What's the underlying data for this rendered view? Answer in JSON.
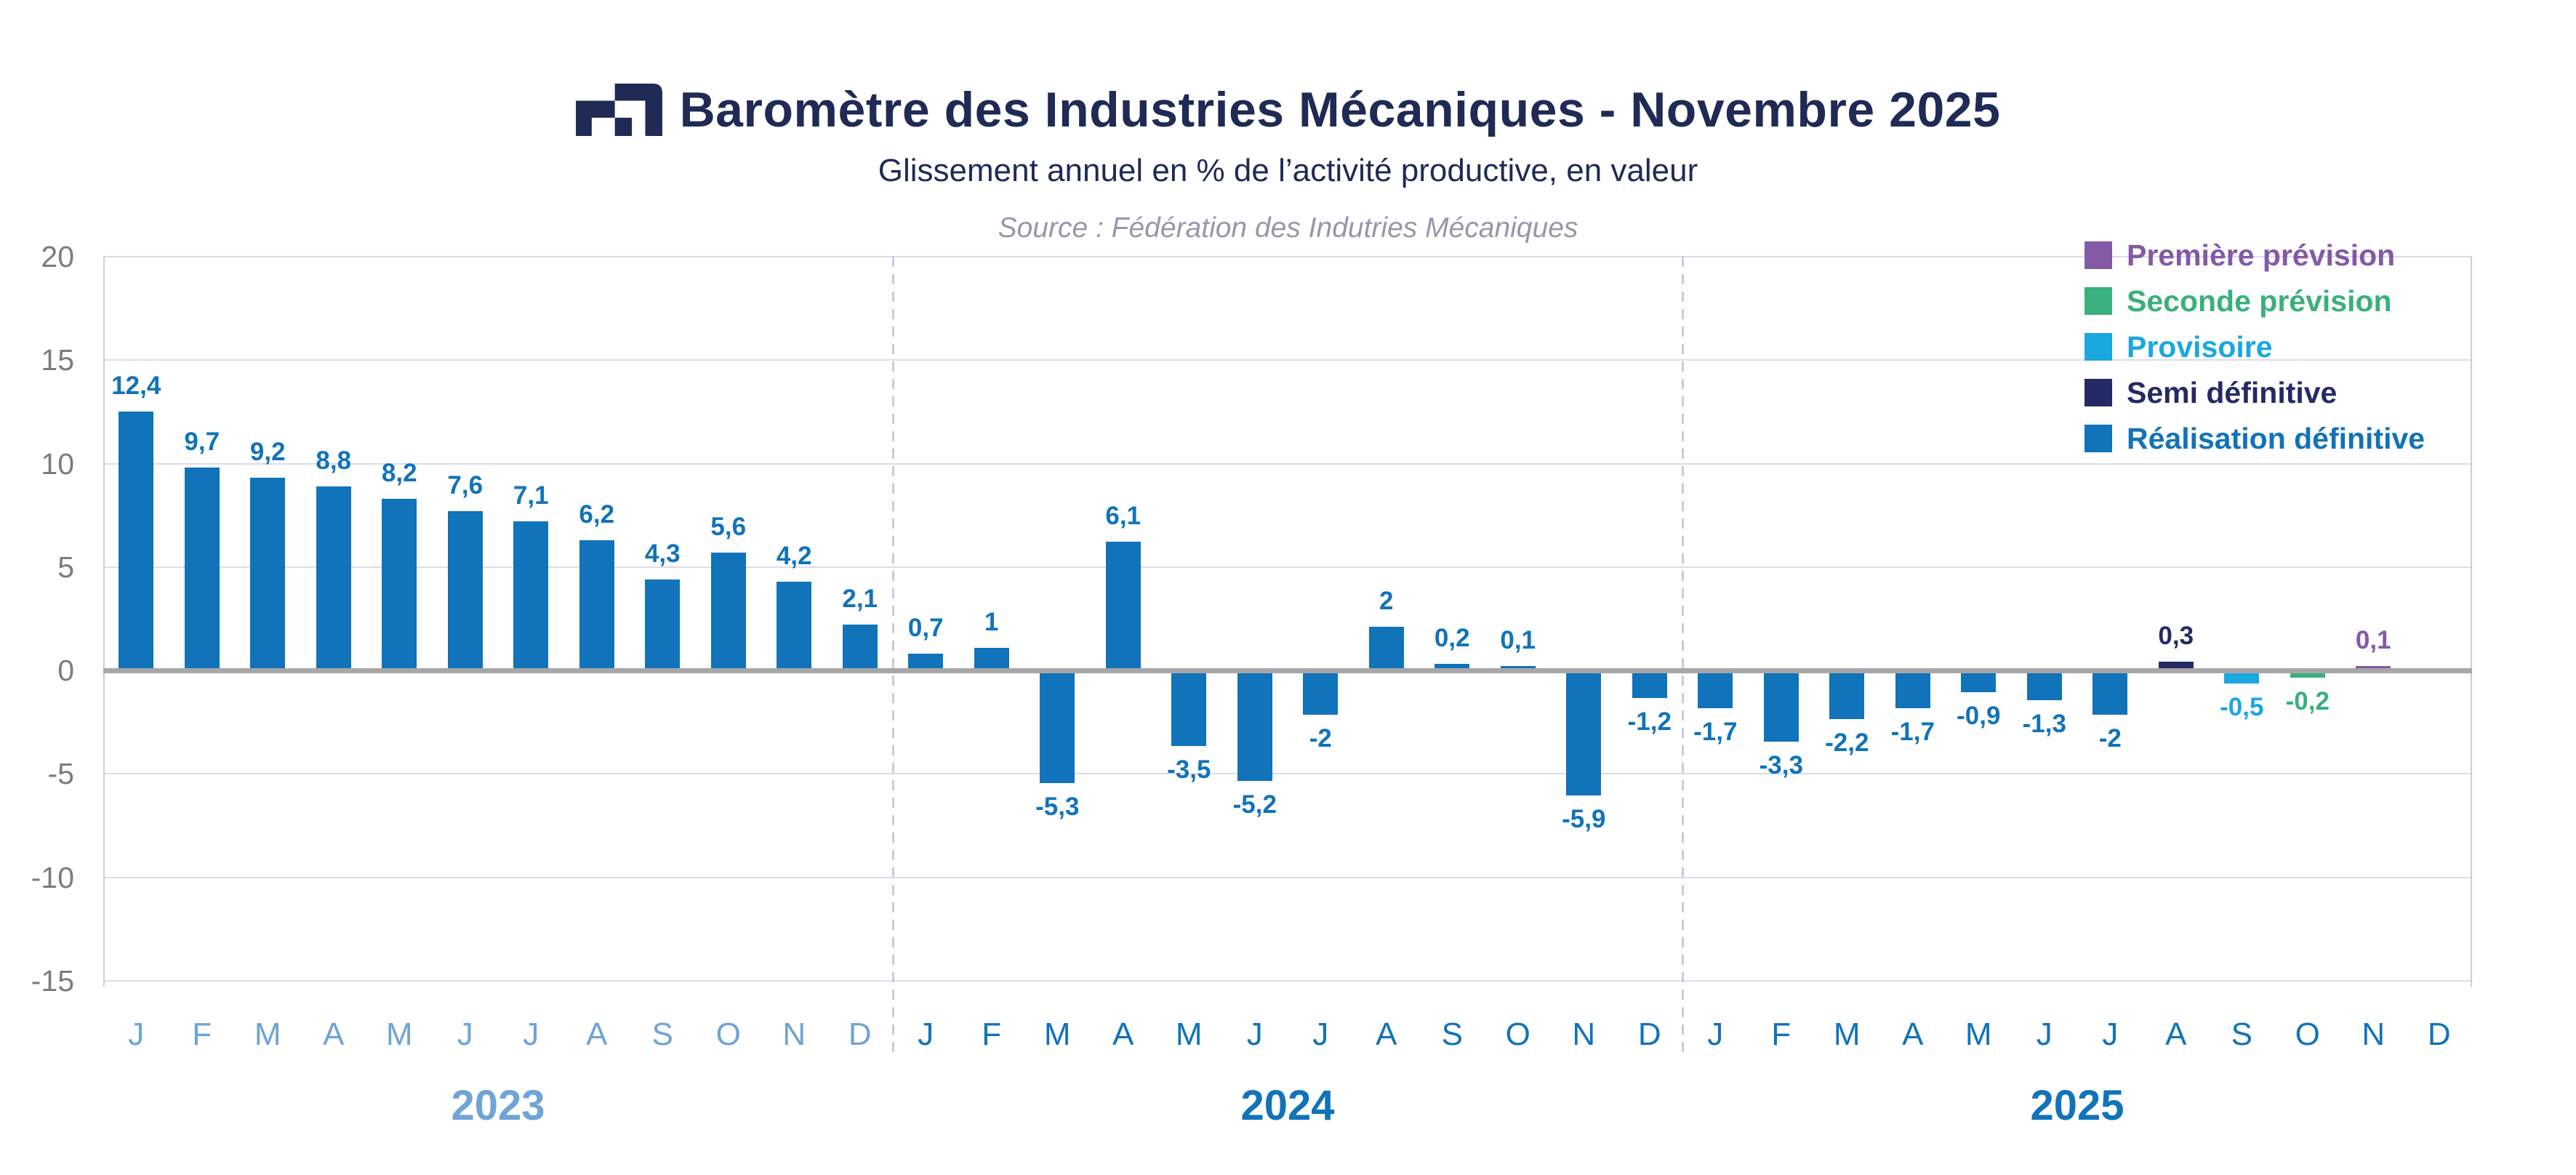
{
  "header": {
    "title": "Baromètre des Industries Mécaniques - Novembre 2025",
    "subtitle": "Glissement annuel en % de l’activité productive, en valeur",
    "source": "Source : Fédération des Indutries Mécaniques"
  },
  "legend": {
    "items": [
      {
        "key": "premiere_prevision",
        "label": "Première prévision",
        "color": "#8459A6"
      },
      {
        "key": "seconde_prevision",
        "label": "Seconde prévision",
        "color": "#39B07D"
      },
      {
        "key": "provisoire",
        "label": "Provisoire",
        "color": "#1BA7E0"
      },
      {
        "key": "semi_definitive",
        "label": "Semi définitive",
        "color": "#242A63"
      },
      {
        "key": "realisation_definitive",
        "label": "Réalisation définitive",
        "color": "#1173B9"
      }
    ]
  },
  "chart_data": {
    "type": "bar",
    "title": "Baromètre des Industries Mécaniques - Novembre 2025",
    "xlabel": "",
    "ylabel": "",
    "ylim": [
      -15,
      20
    ],
    "y_ticks": [
      20,
      15,
      10,
      5,
      0,
      -5,
      -10,
      -15
    ],
    "grid": true,
    "legend_position": "top-right",
    "month_letters": [
      "J",
      "F",
      "M",
      "A",
      "M",
      "J",
      "J",
      "A",
      "S",
      "O",
      "N",
      "D"
    ],
    "years": [
      {
        "label": "2023",
        "color": "#6FA4D6"
      },
      {
        "label": "2024",
        "color": "#1173B9"
      },
      {
        "label": "2025",
        "color": "#1173B9"
      }
    ],
    "series_points": [
      {
        "year": 2023,
        "month": "J",
        "value": 12.4,
        "label": "12,4",
        "category": "realisation_definitive"
      },
      {
        "year": 2023,
        "month": "F",
        "value": 9.7,
        "label": "9,7",
        "category": "realisation_definitive"
      },
      {
        "year": 2023,
        "month": "M",
        "value": 9.2,
        "label": "9,2",
        "category": "realisation_definitive"
      },
      {
        "year": 2023,
        "month": "A",
        "value": 8.8,
        "label": "8,8",
        "category": "realisation_definitive"
      },
      {
        "year": 2023,
        "month": "M",
        "value": 8.2,
        "label": "8,2",
        "category": "realisation_definitive"
      },
      {
        "year": 2023,
        "month": "J",
        "value": 7.6,
        "label": "7,6",
        "category": "realisation_definitive"
      },
      {
        "year": 2023,
        "month": "J",
        "value": 7.1,
        "label": "7,1",
        "category": "realisation_definitive"
      },
      {
        "year": 2023,
        "month": "A",
        "value": 6.2,
        "label": "6,2",
        "category": "realisation_definitive"
      },
      {
        "year": 2023,
        "month": "S",
        "value": 4.3,
        "label": "4,3",
        "category": "realisation_definitive"
      },
      {
        "year": 2023,
        "month": "O",
        "value": 5.6,
        "label": "5,6",
        "category": "realisation_definitive"
      },
      {
        "year": 2023,
        "month": "N",
        "value": 4.2,
        "label": "4,2",
        "category": "realisation_definitive"
      },
      {
        "year": 2023,
        "month": "D",
        "value": 2.1,
        "label": "2,1",
        "category": "realisation_definitive"
      },
      {
        "year": 2024,
        "month": "J",
        "value": 0.7,
        "label": "0,7",
        "category": "realisation_definitive"
      },
      {
        "year": 2024,
        "month": "F",
        "value": 1,
        "label": "1",
        "category": "realisation_definitive"
      },
      {
        "year": 2024,
        "month": "M",
        "value": -5.3,
        "label": "-5,3",
        "category": "realisation_definitive"
      },
      {
        "year": 2024,
        "month": "A",
        "value": 6.1,
        "label": "6,1",
        "category": "realisation_definitive"
      },
      {
        "year": 2024,
        "month": "M",
        "value": -3.5,
        "label": "-3,5",
        "category": "realisation_definitive"
      },
      {
        "year": 2024,
        "month": "J",
        "value": -5.2,
        "label": "-5,2",
        "category": "realisation_definitive"
      },
      {
        "year": 2024,
        "month": "J",
        "value": -2,
        "label": "-2",
        "category": "realisation_definitive"
      },
      {
        "year": 2024,
        "month": "A",
        "value": 2,
        "label": "2",
        "category": "realisation_definitive"
      },
      {
        "year": 2024,
        "month": "S",
        "value": 0.2,
        "label": "0,2",
        "category": "realisation_definitive"
      },
      {
        "year": 2024,
        "month": "O",
        "value": 0.1,
        "label": "0,1",
        "category": "realisation_definitive"
      },
      {
        "year": 2024,
        "month": "N",
        "value": -5.9,
        "label": "-5,9",
        "category": "realisation_definitive"
      },
      {
        "year": 2024,
        "month": "D",
        "value": -1.2,
        "label": "-1,2",
        "category": "realisation_definitive"
      },
      {
        "year": 2025,
        "month": "J",
        "value": -1.7,
        "label": "-1,7",
        "category": "realisation_definitive"
      },
      {
        "year": 2025,
        "month": "F",
        "value": -3.3,
        "label": "-3,3",
        "category": "realisation_definitive"
      },
      {
        "year": 2025,
        "month": "M",
        "value": -2.2,
        "label": "-2,2",
        "category": "realisation_definitive"
      },
      {
        "year": 2025,
        "month": "A",
        "value": -1.7,
        "label": "-1,7",
        "category": "realisation_definitive"
      },
      {
        "year": 2025,
        "month": "M",
        "value": -0.9,
        "label": "-0,9",
        "category": "realisation_definitive"
      },
      {
        "year": 2025,
        "month": "J",
        "value": -1.3,
        "label": "-1,3",
        "category": "realisation_definitive"
      },
      {
        "year": 2025,
        "month": "J",
        "value": -2,
        "label": "-2",
        "category": "realisation_definitive"
      },
      {
        "year": 2025,
        "month": "A",
        "value": 0.3,
        "label": "0,3",
        "category": "semi_definitive"
      },
      {
        "year": 2025,
        "month": "S",
        "value": -0.5,
        "label": "-0,5",
        "category": "provisoire"
      },
      {
        "year": 2025,
        "month": "O",
        "value": -0.2,
        "label": "-0,2",
        "category": "seconde_prevision"
      },
      {
        "year": 2025,
        "month": "N",
        "value": 0.1,
        "label": "0,1",
        "category": "premiere_prevision"
      },
      {
        "year": 2025,
        "month": "D",
        "value": null,
        "label": "",
        "category": "realisation_definitive"
      }
    ]
  },
  "style_colors": {
    "title_navy": "#1F2A55",
    "axis_gray": "#7C7C7C",
    "source_gray": "#9399AC",
    "gridline": "#DADDEB",
    "zero_line": "#A7A7A7",
    "plot_border": "#C9CEE3",
    "year_separator": "#C6CBE0"
  }
}
